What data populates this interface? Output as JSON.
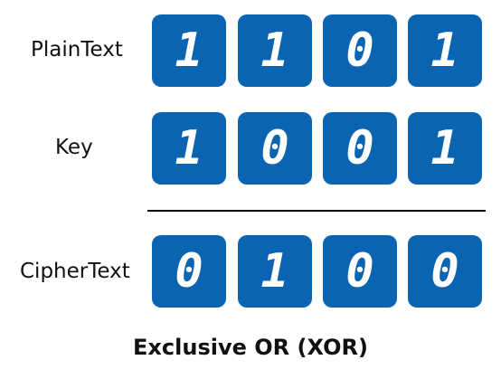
{
  "colors": {
    "box_fill": "#0B64B2",
    "bit_text": "#FFFFFF",
    "label_text": "#111111",
    "divider": "#000000"
  },
  "rows": [
    {
      "label": "PlainText",
      "bits": [
        "1",
        "1",
        "0",
        "1"
      ]
    },
    {
      "label": "Key",
      "bits": [
        "1",
        "0",
        "0",
        "1"
      ]
    },
    {
      "label": "CipherText",
      "bits": [
        "0",
        "1",
        "0",
        "0"
      ]
    }
  ],
  "caption": "Exclusive OR (XOR)"
}
